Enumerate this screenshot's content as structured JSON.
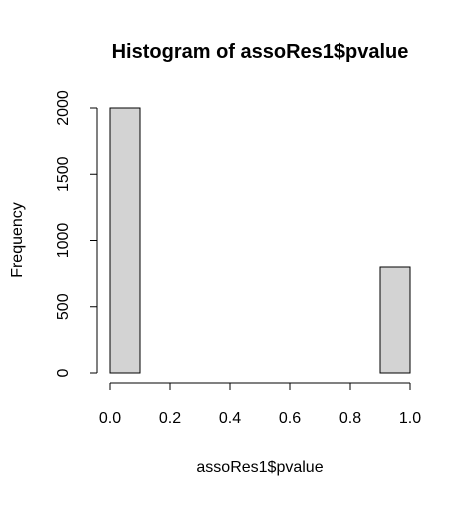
{
  "chart_data": {
    "type": "bar",
    "title": "Histogram of assoRes1$pvalue",
    "xlabel": "assoRes1$pvalue",
    "ylabel": "Frequency",
    "bins": [
      {
        "x0": 0.0,
        "x1": 0.1,
        "value": 2000
      },
      {
        "x0": 0.1,
        "x1": 0.2,
        "value": 0
      },
      {
        "x0": 0.2,
        "x1": 0.3,
        "value": 0
      },
      {
        "x0": 0.3,
        "x1": 0.4,
        "value": 0
      },
      {
        "x0": 0.4,
        "x1": 0.5,
        "value": 0
      },
      {
        "x0": 0.5,
        "x1": 0.6,
        "value": 0
      },
      {
        "x0": 0.6,
        "x1": 0.7,
        "value": 0
      },
      {
        "x0": 0.7,
        "x1": 0.8,
        "value": 0
      },
      {
        "x0": 0.8,
        "x1": 0.9,
        "value": 0
      },
      {
        "x0": 0.9,
        "x1": 1.0,
        "value": 800
      }
    ],
    "xticks": [
      0.0,
      0.2,
      0.4,
      0.6,
      0.8,
      1.0
    ],
    "xtick_labels": [
      "0.0",
      "0.2",
      "0.4",
      "0.6",
      "0.8",
      "1.0"
    ],
    "yticks": [
      0,
      500,
      1000,
      1500,
      2000
    ],
    "ytick_labels": [
      "0",
      "500",
      "1000",
      "1500",
      "2000"
    ],
    "xlim": [
      0.0,
      1.0
    ],
    "ylim": [
      0,
      2000
    ],
    "grid": false,
    "colors": {
      "bar_fill": "#d3d3d3",
      "bar_stroke": "#000000"
    }
  }
}
